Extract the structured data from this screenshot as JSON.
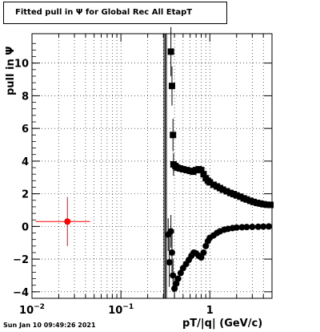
{
  "header": {
    "title": "Fitted pull in Ψ for Global Rec All EtapT"
  },
  "footer": {
    "timestamp": "Sun Jan 10 09:49:26 2021"
  },
  "chart_data": {
    "type": "scatter",
    "title": "Fitted pull in Ψ for Global Rec All EtapT",
    "xlabel": "pT/|q| (GeV/c)",
    "ylabel": "pull in Ψ",
    "x_scale": "log",
    "xlim": [
      0.01,
      5
    ],
    "ylim": [
      -4.4,
      11.8
    ],
    "grid": true,
    "x_ticks": [
      {
        "value": 0.01,
        "base": "10",
        "exp": "−2"
      },
      {
        "value": 0.1,
        "base": "10",
        "exp": "−1"
      },
      {
        "value": 1,
        "base": "1",
        "exp": ""
      }
    ],
    "y_ticks": [
      -4,
      -2,
      0,
      2,
      4,
      6,
      8,
      10
    ],
    "series": [
      {
        "marker": "circle",
        "color": "#ff0000",
        "points": [
          {
            "x": 0.025,
            "y": 0.3,
            "xerr": [
              0.011,
              0.045
            ],
            "yerr": 1.5
          }
        ]
      },
      {
        "marker": "square",
        "color": "#000000",
        "points": [
          {
            "x": 0.365,
            "y": 10.7,
            "yerr": 1.5
          },
          {
            "x": 0.375,
            "y": 8.6,
            "yerr": 1.2
          },
          {
            "x": 0.385,
            "y": 5.6,
            "yerr": 1.0
          },
          {
            "x": 0.39,
            "y": 3.8,
            "yerr": 0.7
          },
          {
            "x": 0.41,
            "y": 3.7
          },
          {
            "x": 0.43,
            "y": 3.6
          },
          {
            "x": 0.46,
            "y": 3.55
          },
          {
            "x": 0.5,
            "y": 3.5
          },
          {
            "x": 0.55,
            "y": 3.45
          },
          {
            "x": 0.6,
            "y": 3.4
          },
          {
            "x": 0.65,
            "y": 3.35
          },
          {
            "x": 0.7,
            "y": 3.45
          },
          {
            "x": 0.75,
            "y": 3.5
          },
          {
            "x": 0.8,
            "y": 3.45
          },
          {
            "x": 0.85,
            "y": 3.2
          },
          {
            "x": 0.9,
            "y": 2.95
          },
          {
            "x": 0.95,
            "y": 2.8
          },
          {
            "x": 1.0,
            "y": 2.7
          },
          {
            "x": 1.1,
            "y": 2.55
          },
          {
            "x": 1.2,
            "y": 2.45
          },
          {
            "x": 1.3,
            "y": 2.35
          },
          {
            "x": 1.4,
            "y": 2.25
          },
          {
            "x": 1.55,
            "y": 2.15
          },
          {
            "x": 1.7,
            "y": 2.05
          },
          {
            "x": 1.85,
            "y": 1.98
          },
          {
            "x": 2.0,
            "y": 1.9
          },
          {
            "x": 2.2,
            "y": 1.82
          },
          {
            "x": 2.4,
            "y": 1.72
          },
          {
            "x": 2.6,
            "y": 1.65
          },
          {
            "x": 2.85,
            "y": 1.57
          },
          {
            "x": 3.1,
            "y": 1.5
          },
          {
            "x": 3.4,
            "y": 1.44
          },
          {
            "x": 3.7,
            "y": 1.4
          },
          {
            "x": 4.0,
            "y": 1.36
          },
          {
            "x": 4.4,
            "y": 1.33
          },
          {
            "x": 4.8,
            "y": 1.32
          }
        ]
      },
      {
        "marker": "circle",
        "color": "#000000",
        "points": [
          {
            "x": 0.34,
            "y": -0.5,
            "yerr": 1.0
          },
          {
            "x": 0.35,
            "y": -2.2,
            "yerr": 1.5
          },
          {
            "x": 0.365,
            "y": -0.3,
            "yerr": 1.0
          },
          {
            "x": 0.375,
            "y": -1.6,
            "yerr": 1.2
          },
          {
            "x": 0.385,
            "y": -3.0,
            "yerr": 1.0
          },
          {
            "x": 0.4,
            "y": -3.8,
            "yerr": 0.6
          },
          {
            "x": 0.42,
            "y": -3.5
          },
          {
            "x": 0.44,
            "y": -3.2
          },
          {
            "x": 0.47,
            "y": -2.85
          },
          {
            "x": 0.5,
            "y": -2.55
          },
          {
            "x": 0.54,
            "y": -2.3
          },
          {
            "x": 0.58,
            "y": -2.05
          },
          {
            "x": 0.62,
            "y": -1.8
          },
          {
            "x": 0.66,
            "y": -1.6
          },
          {
            "x": 0.7,
            "y": -1.65
          },
          {
            "x": 0.75,
            "y": -1.8
          },
          {
            "x": 0.8,
            "y": -1.9
          },
          {
            "x": 0.85,
            "y": -1.6
          },
          {
            "x": 0.9,
            "y": -1.2
          },
          {
            "x": 0.95,
            "y": -0.9
          },
          {
            "x": 1.0,
            "y": -0.7
          },
          {
            "x": 1.1,
            "y": -0.55
          },
          {
            "x": 1.2,
            "y": -0.4
          },
          {
            "x": 1.3,
            "y": -0.3
          },
          {
            "x": 1.45,
            "y": -0.2
          },
          {
            "x": 1.6,
            "y": -0.15
          },
          {
            "x": 1.8,
            "y": -0.1
          },
          {
            "x": 2.0,
            "y": -0.07
          },
          {
            "x": 2.3,
            "y": -0.05
          },
          {
            "x": 2.6,
            "y": -0.04
          },
          {
            "x": 3.0,
            "y": -0.03
          },
          {
            "x": 3.5,
            "y": -0.02
          },
          {
            "x": 4.0,
            "y": -0.01
          },
          {
            "x": 4.6,
            "y": 0.0
          }
        ]
      }
    ],
    "vertical_lines": [
      0.305,
      0.315,
      0.325
    ]
  }
}
